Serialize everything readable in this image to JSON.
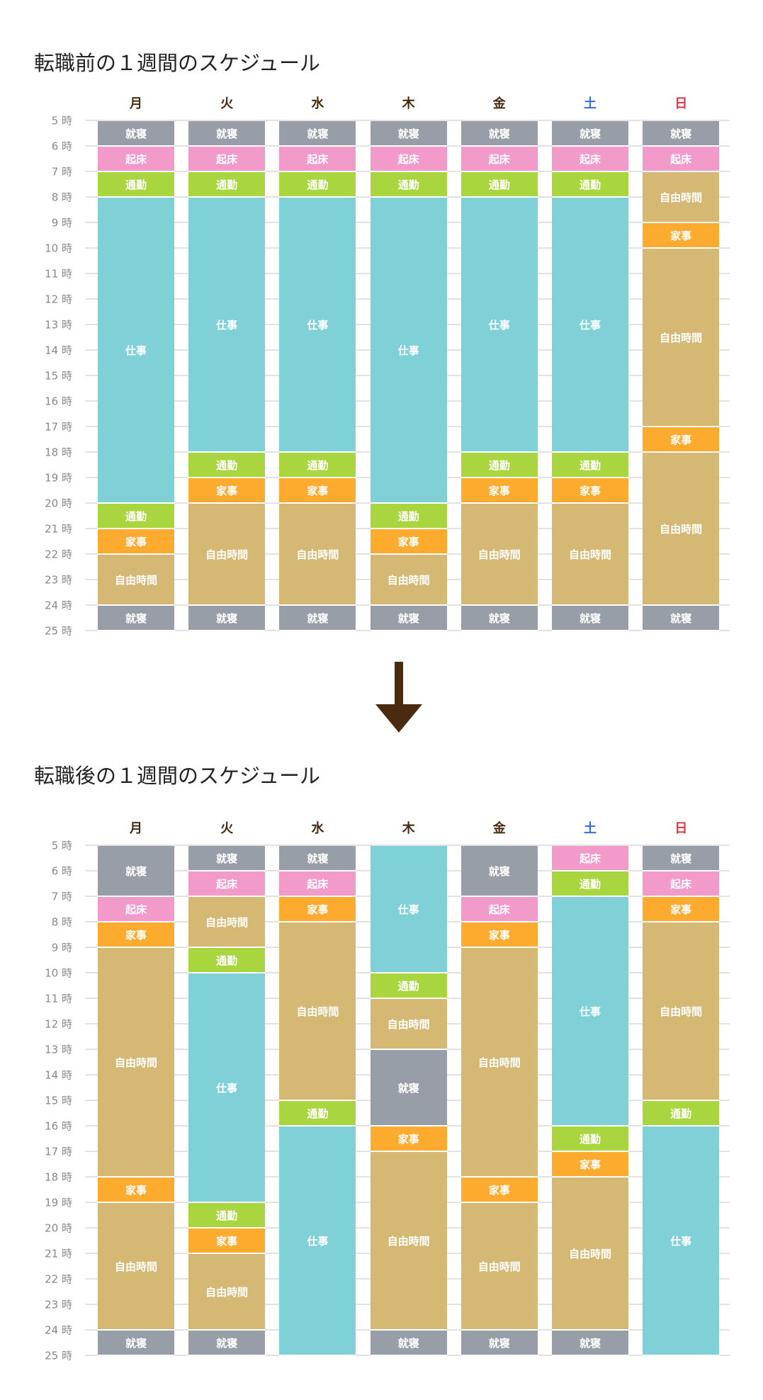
{
  "colors": {
    "就寝": "#979ea8",
    "起床": "#f29bcb",
    "通勤": "#a9d63f",
    "仕事": "#80d0d8",
    "自由時間": "#d5b873",
    "家事": "#fcab2f",
    "weekday": "#4a2b10",
    "saturday": "#2f6ee6",
    "sunday": "#e8323c",
    "arrow": "#4a2b10"
  },
  "arrow_icon": "arrow-down-icon",
  "chart_data": [
    {
      "type": "table",
      "title": "転職前の１週間のスケジュール",
      "days": [
        "月",
        "火",
        "水",
        "木",
        "金",
        "土",
        "日"
      ],
      "hour_labels": [
        "5 時",
        "6 時",
        "7 時",
        "8 時",
        "9 時",
        "10 時",
        "11 時",
        "12 時",
        "13 時",
        "14 時",
        "15 時",
        "16 時",
        "17 時",
        "18 時",
        "19 時",
        "20 時",
        "21 時",
        "22 時",
        "23 時",
        "24 時",
        "25 時"
      ],
      "ylim": [
        5,
        25
      ],
      "schedule": [
        [
          [
            5,
            6,
            "就寝"
          ],
          [
            6,
            7,
            "起床"
          ],
          [
            7,
            8,
            "通勤"
          ],
          [
            8,
            20,
            "仕事"
          ],
          [
            20,
            21,
            "通勤"
          ],
          [
            21,
            22,
            "家事"
          ],
          [
            22,
            24,
            "自由時間"
          ],
          [
            24,
            25,
            "就寝"
          ]
        ],
        [
          [
            5,
            6,
            "就寝"
          ],
          [
            6,
            7,
            "起床"
          ],
          [
            7,
            8,
            "通勤"
          ],
          [
            8,
            18,
            "仕事"
          ],
          [
            18,
            19,
            "通勤"
          ],
          [
            19,
            20,
            "家事"
          ],
          [
            20,
            24,
            "自由時間"
          ],
          [
            24,
            25,
            "就寝"
          ]
        ],
        [
          [
            5,
            6,
            "就寝"
          ],
          [
            6,
            7,
            "起床"
          ],
          [
            7,
            8,
            "通勤"
          ],
          [
            8,
            18,
            "仕事"
          ],
          [
            18,
            19,
            "通勤"
          ],
          [
            19,
            20,
            "家事"
          ],
          [
            20,
            24,
            "自由時間"
          ],
          [
            24,
            25,
            "就寝"
          ]
        ],
        [
          [
            5,
            6,
            "就寝"
          ],
          [
            6,
            7,
            "起床"
          ],
          [
            7,
            8,
            "通勤"
          ],
          [
            8,
            20,
            "仕事"
          ],
          [
            20,
            21,
            "通勤"
          ],
          [
            21,
            22,
            "家事"
          ],
          [
            22,
            24,
            "自由時間"
          ],
          [
            24,
            25,
            "就寝"
          ]
        ],
        [
          [
            5,
            6,
            "就寝"
          ],
          [
            6,
            7,
            "起床"
          ],
          [
            7,
            8,
            "通勤"
          ],
          [
            8,
            18,
            "仕事"
          ],
          [
            18,
            19,
            "通勤"
          ],
          [
            19,
            20,
            "家事"
          ],
          [
            20,
            24,
            "自由時間"
          ],
          [
            24,
            25,
            "就寝"
          ]
        ],
        [
          [
            5,
            6,
            "就寝"
          ],
          [
            6,
            7,
            "起床"
          ],
          [
            7,
            8,
            "通勤"
          ],
          [
            8,
            18,
            "仕事"
          ],
          [
            18,
            19,
            "通勤"
          ],
          [
            19,
            20,
            "家事"
          ],
          [
            20,
            24,
            "自由時間"
          ],
          [
            24,
            25,
            "就寝"
          ]
        ],
        [
          [
            5,
            6,
            "就寝"
          ],
          [
            6,
            7,
            "起床"
          ],
          [
            7,
            9,
            "自由時間"
          ],
          [
            9,
            10,
            "家事"
          ],
          [
            10,
            17,
            "自由時間"
          ],
          [
            17,
            18,
            "家事"
          ],
          [
            18,
            24,
            "自由時間"
          ],
          [
            24,
            25,
            "就寝"
          ]
        ]
      ]
    },
    {
      "type": "table",
      "title": "転職後の１週間のスケジュール",
      "days": [
        "月",
        "火",
        "水",
        "木",
        "金",
        "土",
        "日"
      ],
      "hour_labels": [
        "5 時",
        "6 時",
        "7 時",
        "8 時",
        "9 時",
        "10 時",
        "11 時",
        "12 時",
        "13 時",
        "14 時",
        "15 時",
        "16 時",
        "17 時",
        "18 時",
        "19 時",
        "20 時",
        "21 時",
        "22 時",
        "23 時",
        "24 時",
        "25 時"
      ],
      "ylim": [
        5,
        25
      ],
      "schedule": [
        [
          [
            5,
            7,
            "就寝"
          ],
          [
            7,
            8,
            "起床"
          ],
          [
            8,
            9,
            "家事"
          ],
          [
            9,
            18,
            "自由時間"
          ],
          [
            18,
            19,
            "家事"
          ],
          [
            19,
            24,
            "自由時間"
          ],
          [
            24,
            25,
            "就寝"
          ]
        ],
        [
          [
            5,
            6,
            "就寝"
          ],
          [
            6,
            7,
            "起床"
          ],
          [
            7,
            9,
            "自由時間"
          ],
          [
            9,
            10,
            "通勤"
          ],
          [
            10,
            19,
            "仕事"
          ],
          [
            19,
            20,
            "通勤"
          ],
          [
            20,
            21,
            "家事"
          ],
          [
            21,
            24,
            "自由時間"
          ],
          [
            24,
            25,
            "就寝"
          ]
        ],
        [
          [
            5,
            6,
            "就寝"
          ],
          [
            6,
            7,
            "起床"
          ],
          [
            7,
            8,
            "家事"
          ],
          [
            8,
            15,
            "自由時間"
          ],
          [
            15,
            16,
            "通勤"
          ],
          [
            16,
            25,
            "仕事"
          ]
        ],
        [
          [
            5,
            10,
            "仕事"
          ],
          [
            10,
            11,
            "通勤"
          ],
          [
            11,
            13,
            "自由時間"
          ],
          [
            13,
            16,
            "就寝"
          ],
          [
            16,
            17,
            "家事"
          ],
          [
            17,
            24,
            "自由時間"
          ],
          [
            24,
            25,
            "就寝"
          ]
        ],
        [
          [
            5,
            7,
            "就寝"
          ],
          [
            7,
            8,
            "起床"
          ],
          [
            8,
            9,
            "家事"
          ],
          [
            9,
            18,
            "自由時間"
          ],
          [
            18,
            19,
            "家事"
          ],
          [
            19,
            24,
            "自由時間"
          ],
          [
            24,
            25,
            "就寝"
          ]
        ],
        [
          [
            5,
            6,
            "起床"
          ],
          [
            6,
            7,
            "通勤"
          ],
          [
            7,
            16,
            "仕事"
          ],
          [
            16,
            17,
            "通勤"
          ],
          [
            17,
            18,
            "家事"
          ],
          [
            18,
            24,
            "自由時間"
          ],
          [
            24,
            25,
            "就寝"
          ]
        ],
        [
          [
            5,
            6,
            "就寝"
          ],
          [
            6,
            7,
            "起床"
          ],
          [
            7,
            8,
            "家事"
          ],
          [
            8,
            15,
            "自由時間"
          ],
          [
            15,
            16,
            "通勤"
          ],
          [
            16,
            25,
            "仕事"
          ]
        ]
      ]
    }
  ]
}
